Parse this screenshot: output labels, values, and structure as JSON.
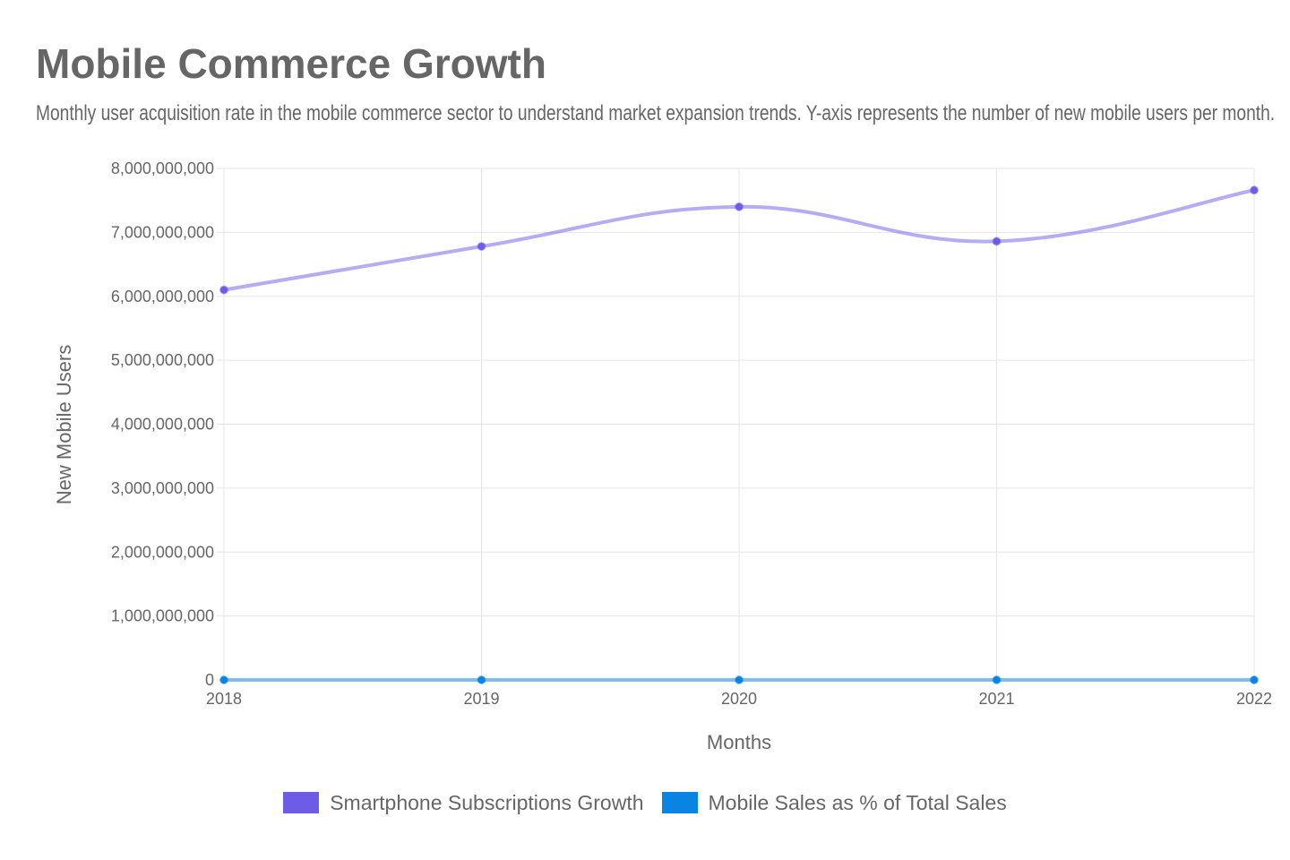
{
  "header": {
    "title": "Mobile Commerce Growth",
    "subtitle": "Monthly user acquisition rate in the mobile commerce sector to understand market expansion trends. Y-axis represents the number of new mobile users per month."
  },
  "chart_data": {
    "type": "line",
    "title": "Mobile Commerce Growth",
    "subtitle": "Monthly user acquisition rate in the mobile commerce sector to understand market expansion trends. Y-axis represents the number of new mobile users per month.",
    "xlabel": "Months",
    "ylabel": "New Mobile Users",
    "categories": [
      "2018",
      "2019",
      "2020",
      "2021",
      "2022"
    ],
    "ylim": [
      0,
      8000000000
    ],
    "yticks": [
      0,
      1000000000,
      2000000000,
      3000000000,
      4000000000,
      5000000000,
      6000000000,
      7000000000,
      8000000000
    ],
    "ytick_labels": [
      "0",
      "1,000,000,000",
      "2,000,000,000",
      "3,000,000,000",
      "4,000,000,000",
      "5,000,000,000",
      "6,000,000,000",
      "7,000,000,000",
      "8,000,000,000"
    ],
    "grid": true,
    "legend_position": "bottom",
    "series": [
      {
        "name": "Smartphone Subscriptions Growth",
        "values": [
          6100000000,
          6780000000,
          7400000000,
          6860000000,
          7660000000
        ],
        "color": "#6c5ce7"
      },
      {
        "name": "Mobile Sales as % of Total Sales",
        "values": [
          10.4,
          12.5,
          17.3,
          19.0,
          21.0
        ],
        "color": "#0984e3"
      }
    ]
  }
}
